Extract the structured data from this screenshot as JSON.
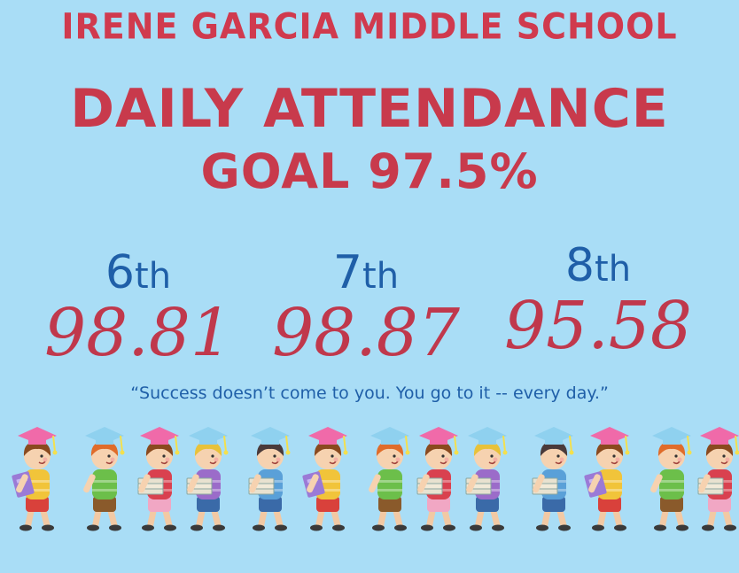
{
  "school_name": "IRENE GARCIA MIDDLE SCHOOL",
  "headline_line1": "DAILY ATTENDANCE",
  "headline_line2": "GOAL 97.5%",
  "grades": [
    {
      "num": "6",
      "suffix": "th",
      "value": "98.81"
    },
    {
      "num": "7",
      "suffix": "th",
      "value": "98.87"
    },
    {
      "num": "8",
      "suffix": "th",
      "value": "95.58"
    }
  ],
  "quote": "“Success doesn’t come to you.  You go to it -- every day.”",
  "colors": {
    "background": "#a9ddf6",
    "title_red": "#d03a4e",
    "grade_blue": "#1f5fa8",
    "value_red": "#c0384c"
  },
  "decoration": "graduate-kids-border"
}
